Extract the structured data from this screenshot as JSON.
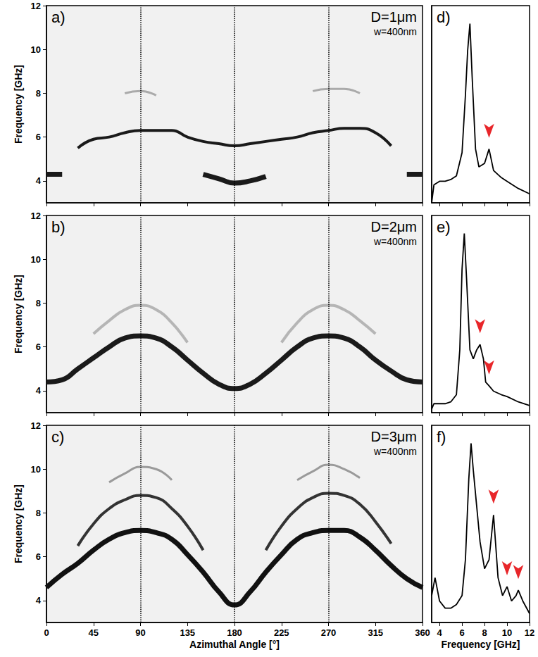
{
  "chart_data": [
    {
      "type": "line",
      "panel": "a)",
      "annotations": [
        "D=1μm",
        "w=400nm"
      ],
      "ylabel": "Frequency [GHz]",
      "tick_labels": "y",
      "xlim": [
        0,
        360
      ],
      "xticks": [
        0,
        45,
        90,
        135,
        180,
        225,
        270,
        315,
        360
      ],
      "ylim": [
        3,
        12
      ],
      "yticks": [
        4,
        6,
        8,
        10,
        12
      ],
      "reference_lines": [
        90,
        180,
        270
      ],
      "x": [
        0,
        15,
        30,
        45,
        60,
        75,
        90,
        105,
        120,
        135,
        150,
        165,
        180,
        195,
        210,
        225,
        240,
        255,
        270,
        285,
        300,
        315,
        330,
        345,
        360
      ],
      "series": [
        {
          "color": "#1a1a1a",
          "values": [
            4.3,
            4.3,
            null,
            null,
            null,
            null,
            null,
            null,
            null,
            null,
            4.3,
            4.1,
            3.9,
            4.0,
            4.2,
            null,
            null,
            null,
            null,
            null,
            null,
            null,
            null,
            4.3,
            4.3
          ]
        },
        {
          "color": "#1a1a1a",
          "values": [
            null,
            null,
            5.5,
            5.9,
            6.0,
            6.2,
            6.3,
            6.3,
            6.3,
            6.0,
            5.8,
            5.7,
            5.6,
            5.7,
            5.8,
            5.9,
            6.0,
            6.2,
            6.3,
            6.4,
            6.4,
            6.2,
            5.6,
            null,
            null
          ]
        },
        {
          "color": "#aaaaaa",
          "values": [
            null,
            null,
            null,
            null,
            null,
            8.0,
            8.1,
            7.9,
            null,
            null,
            null,
            null,
            null,
            null,
            null,
            null,
            null,
            8.1,
            8.2,
            8.2,
            8.0,
            null,
            null,
            null,
            null
          ]
        }
      ]
    },
    {
      "type": "line",
      "panel": "b)",
      "annotations": [
        "D=2μm",
        "w=400nm"
      ],
      "ylabel": "Frequency [GHz]",
      "tick_labels": "y",
      "xlim": [
        0,
        360
      ],
      "xticks": [
        0,
        45,
        90,
        135,
        180,
        225,
        270,
        315,
        360
      ],
      "ylim": [
        3,
        12
      ],
      "yticks": [
        4,
        6,
        8,
        10,
        12
      ],
      "reference_lines": [
        90,
        180,
        270
      ],
      "x": [
        0,
        15,
        30,
        45,
        60,
        75,
        90,
        105,
        120,
        135,
        150,
        165,
        180,
        195,
        210,
        225,
        240,
        255,
        270,
        285,
        300,
        315,
        330,
        345,
        360
      ],
      "series": [
        {
          "color": "#1a1a1a",
          "values": [
            4.4,
            4.5,
            5.0,
            5.5,
            6.0,
            6.4,
            6.5,
            6.4,
            6.0,
            5.4,
            4.8,
            4.3,
            4.1,
            4.3,
            4.8,
            5.4,
            6.0,
            6.4,
            6.5,
            6.4,
            6.0,
            5.4,
            4.9,
            4.5,
            4.4
          ]
        },
        {
          "color": "#b5b5b5",
          "values": [
            null,
            null,
            null,
            6.6,
            7.2,
            7.7,
            7.9,
            7.7,
            7.1,
            6.2,
            null,
            null,
            null,
            null,
            null,
            6.2,
            7.1,
            7.7,
            7.9,
            7.7,
            7.2,
            6.6,
            null,
            null,
            null
          ]
        }
      ]
    },
    {
      "type": "line",
      "panel": "c)",
      "annotations": [
        "D=3μm",
        "w=400nm"
      ],
      "ylabel": "Frequency [GHz]",
      "xlabel": "Azimuthal Angle [°]",
      "xlim": [
        0,
        360
      ],
      "xticks": [
        0,
        45,
        90,
        135,
        180,
        225,
        270,
        315,
        360
      ],
      "ylim": [
        3,
        12
      ],
      "yticks": [
        4,
        6,
        8,
        10,
        12
      ],
      "reference_lines": [
        90,
        180,
        270
      ],
      "x": [
        0,
        15,
        30,
        45,
        60,
        75,
        90,
        105,
        120,
        135,
        150,
        165,
        180,
        195,
        210,
        225,
        240,
        255,
        270,
        285,
        300,
        315,
        330,
        345,
        360
      ],
      "series": [
        {
          "color": "#111111",
          "values": [
            4.6,
            5.2,
            5.7,
            6.3,
            6.8,
            7.1,
            7.2,
            7.1,
            6.8,
            6.1,
            5.3,
            4.4,
            3.8,
            4.4,
            5.3,
            6.1,
            6.8,
            7.1,
            7.2,
            7.2,
            6.9,
            6.3,
            5.6,
            5.0,
            4.6
          ]
        },
        {
          "color": "#333333",
          "values": [
            null,
            null,
            6.5,
            7.5,
            8.2,
            8.6,
            8.8,
            8.7,
            8.2,
            7.4,
            6.3,
            null,
            null,
            null,
            6.3,
            7.4,
            8.2,
            8.7,
            8.9,
            8.8,
            8.4,
            7.6,
            6.6,
            null,
            null
          ]
        },
        {
          "color": "#9a9a9a",
          "values": [
            null,
            null,
            null,
            null,
            9.4,
            9.8,
            10.1,
            10.0,
            9.5,
            null,
            null,
            null,
            null,
            null,
            null,
            null,
            9.5,
            9.9,
            10.2,
            10.0,
            9.6,
            null,
            null,
            null,
            null
          ]
        }
      ]
    },
    {
      "type": "line",
      "panel": "d)",
      "tick_labels": false,
      "xlim": [
        3.3,
        12
      ],
      "xticks": [
        4,
        6,
        8,
        10,
        12
      ],
      "ylim": [
        0,
        1.1
      ],
      "x": [
        3.3,
        3.5,
        4,
        4.5,
        5,
        5.5,
        6,
        6.3,
        6.5,
        6.7,
        6.9,
        7.2,
        7.5,
        8,
        8.4,
        8.8,
        9.5,
        10,
        11,
        12
      ],
      "series": [
        {
          "color": "#000000",
          "values": [
            0,
            0.1,
            0.12,
            0.12,
            0.13,
            0.15,
            0.28,
            0.6,
            0.85,
            1.0,
            0.7,
            0.3,
            0.2,
            0.22,
            0.3,
            0.18,
            0.14,
            0.12,
            0.08,
            0.05
          ]
        }
      ],
      "arrows": {
        "color": "#e8262a",
        "points": [
          [
            8.4,
            0.3
          ]
        ]
      }
    },
    {
      "type": "line",
      "panel": "e)",
      "tick_labels": false,
      "xlim": [
        3.3,
        12
      ],
      "xticks": [
        4,
        6,
        8,
        10,
        12
      ],
      "ylim": [
        0,
        1.1
      ],
      "x": [
        3.3,
        3.5,
        4,
        4.5,
        5,
        5.5,
        5.8,
        6.0,
        6.2,
        6.4,
        6.7,
        7.0,
        7.3,
        7.6,
        7.9,
        8.1,
        8.4,
        8.8,
        9.5,
        10,
        11,
        12
      ],
      "series": [
        {
          "color": "#000000",
          "values": [
            0.02,
            0.05,
            0.05,
            0.05,
            0.06,
            0.1,
            0.35,
            0.8,
            1.0,
            0.75,
            0.35,
            0.3,
            0.35,
            0.38,
            0.3,
            0.17,
            0.15,
            0.12,
            0.1,
            0.09,
            0.06,
            0.04
          ]
        }
      ],
      "arrows": {
        "color": "#e8262a",
        "points": [
          [
            7.6,
            0.38
          ],
          [
            8.4,
            0.15
          ]
        ]
      }
    },
    {
      "type": "line",
      "panel": "f)",
      "tick_labels": "x",
      "xlabel": "Frequency [GHz]",
      "xlim": [
        3.3,
        12
      ],
      "xticks": [
        4,
        6,
        8,
        10,
        12
      ],
      "ylim": [
        0,
        1.1
      ],
      "x": [
        3.3,
        3.6,
        4,
        4.5,
        5,
        5.5,
        6,
        6.3,
        6.6,
        6.8,
        7.0,
        7.3,
        7.6,
        8.0,
        8.4,
        8.8,
        9.2,
        9.6,
        10,
        10.4,
        10.8,
        11,
        11.4,
        12
      ],
      "series": [
        {
          "color": "#000000",
          "values": [
            0.15,
            0.25,
            0.12,
            0.08,
            0.08,
            0.1,
            0.15,
            0.35,
            0.8,
            1.0,
            0.85,
            0.65,
            0.45,
            0.3,
            0.35,
            0.6,
            0.25,
            0.15,
            0.2,
            0.12,
            0.15,
            0.18,
            0.12,
            0.05
          ]
        }
      ],
      "arrows": {
        "color": "#e8262a",
        "points": [
          [
            8.8,
            0.6
          ],
          [
            10.0,
            0.2
          ],
          [
            11.0,
            0.18
          ]
        ]
      }
    }
  ]
}
